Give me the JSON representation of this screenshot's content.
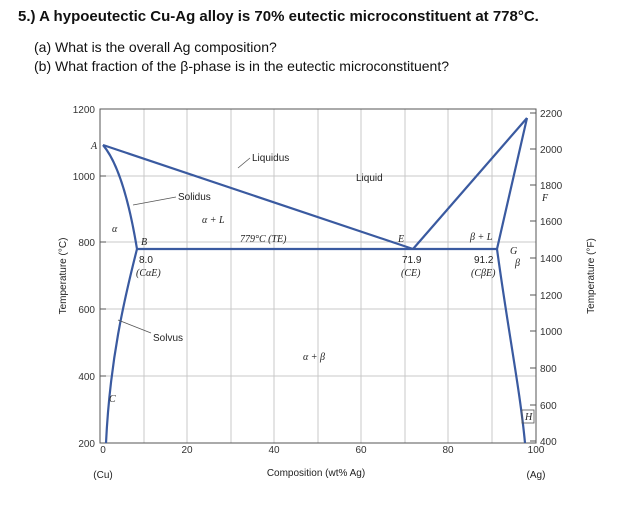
{
  "question": {
    "title": "5.) A hypoeutectic Cu-Ag alloy is 70% eutectic microconstituent at 778°C.",
    "part_a": "(a) What is the overall Ag composition?",
    "part_b": "(b) What fraction of the β-phase is in the eutectic microconstituent?"
  },
  "axes": {
    "left_ticks": [
      "1200",
      "1000",
      "800",
      "600",
      "400",
      "200"
    ],
    "right_ticks": [
      "2200",
      "2000",
      "1800",
      "1600",
      "1400",
      "1200",
      "1000",
      "800",
      "600",
      "400"
    ],
    "right_unit": "F",
    "bottom_ticks": [
      "0",
      "20",
      "40",
      "60",
      "80",
      "100"
    ],
    "left_title": "Temperature (°C)",
    "right_title": "Temperature (°F)",
    "bottom_title": "Composition (wt% Ag)",
    "left_end": "(Cu)",
    "right_end": "(Ag)"
  },
  "labels": {
    "A": "A",
    "B": "B",
    "C": "C",
    "E": "E",
    "G": "G",
    "H": "H",
    "liquidus": "Liquidus",
    "liquid": "Liquid",
    "solidus": "Solidus",
    "solvus": "Solvus",
    "alpha": "α",
    "beta": "β",
    "alpha_L": "α + L",
    "beta_L": "β + L",
    "alpha_beta": "α + β",
    "eutectic_temp": "779°C (TE)",
    "ca_val": "8.0",
    "ca_sym": "(CαE)",
    "ce_val": "71.9",
    "ce_sym": "(CE)",
    "cb_val": "91.2",
    "cb_sym": "(CβE)"
  },
  "diagram": {
    "x_range": [
      0,
      100
    ],
    "y_range": [
      200,
      1200
    ],
    "eutectic": {
      "temperature_c": 779,
      "c_alpha": 8.0,
      "c_e": 71.9,
      "c_beta": 91.2
    },
    "colors": {
      "phase_lines": "#3a5aa0",
      "grid": "#c8c8c8",
      "frame": "#555555"
    }
  }
}
